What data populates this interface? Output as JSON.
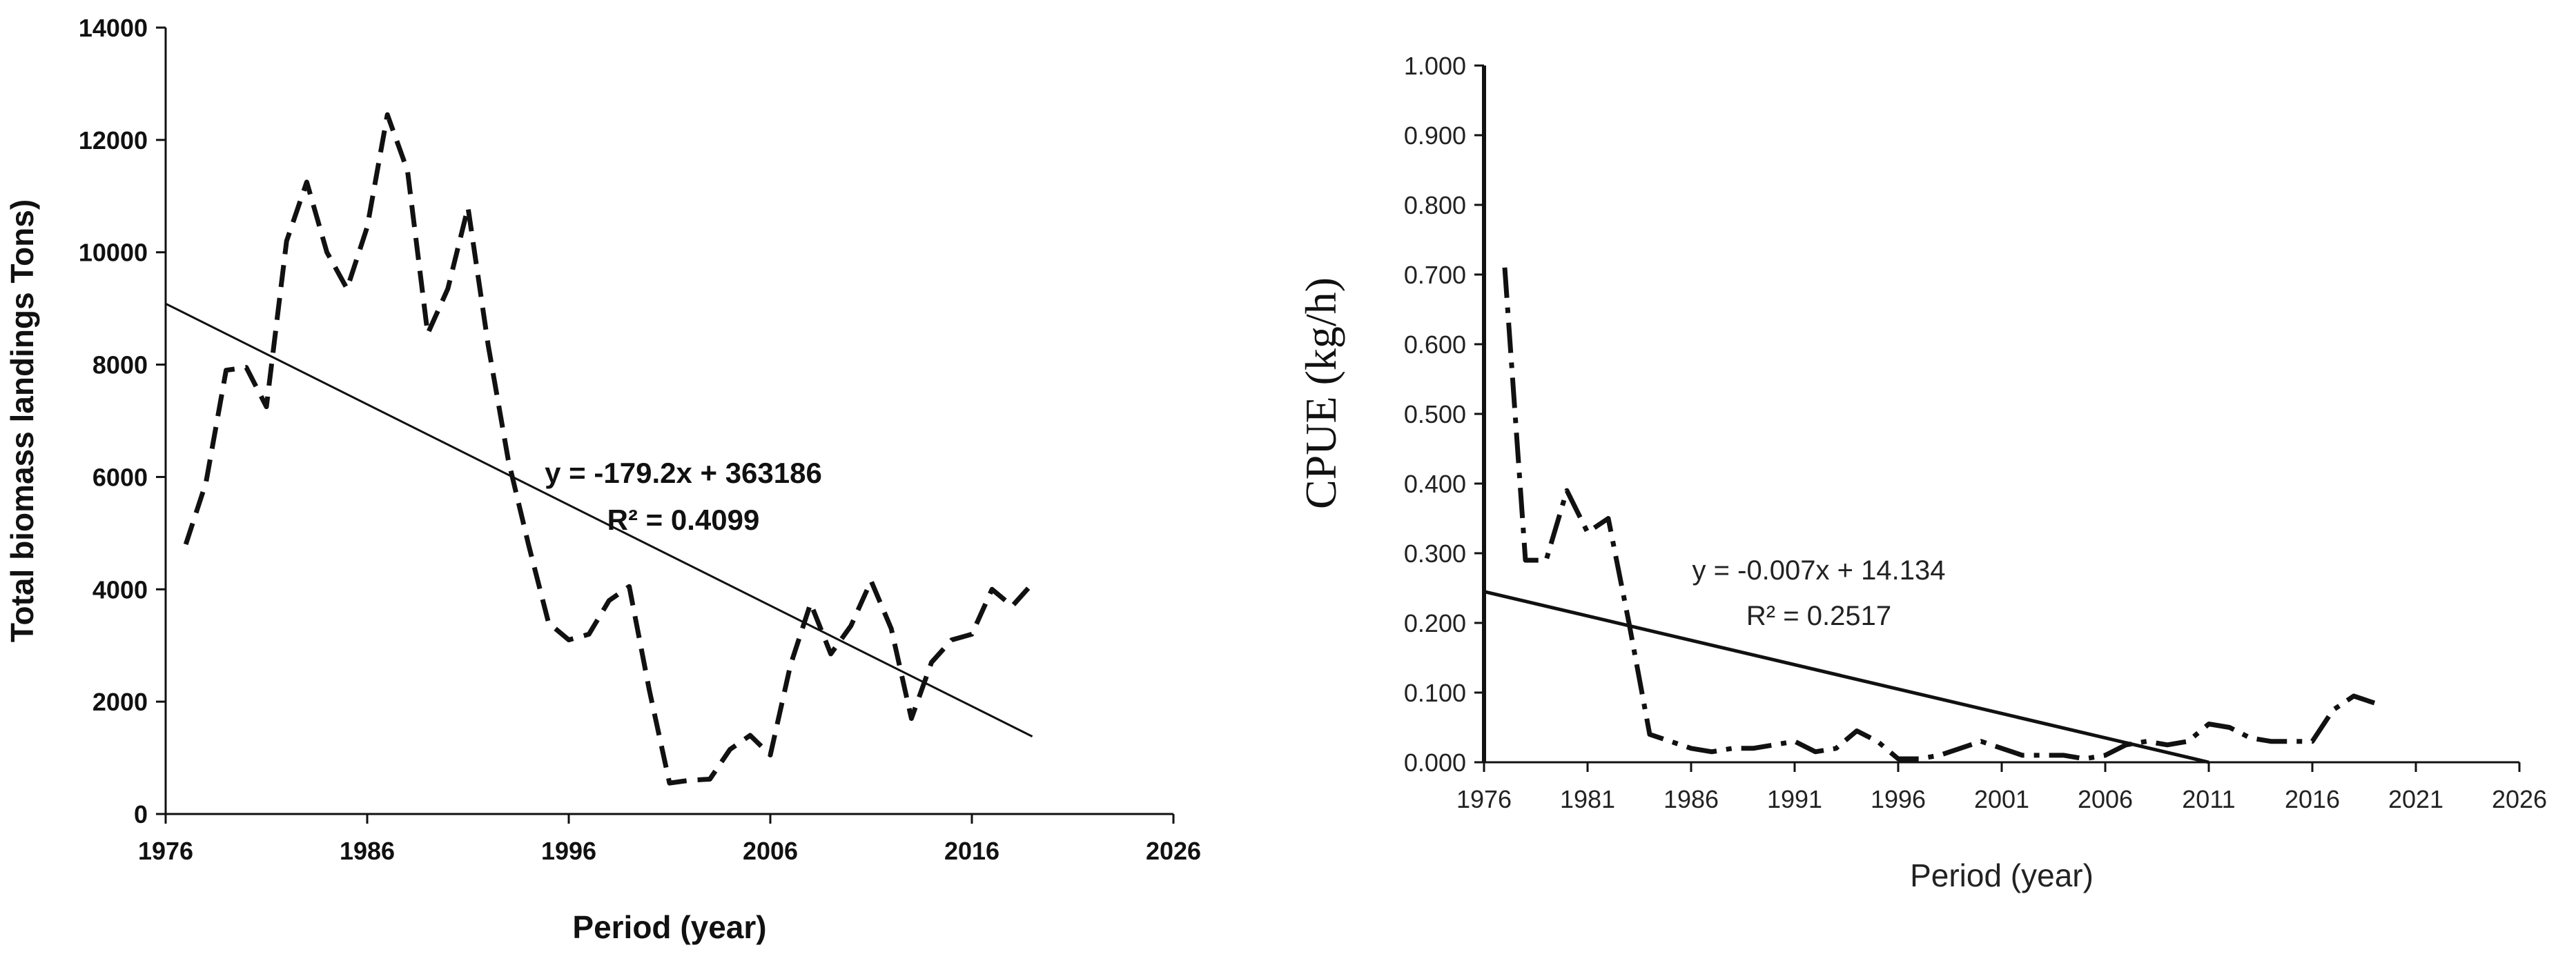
{
  "chart_data": [
    {
      "type": "line",
      "title": "",
      "xlabel": "Period (year)",
      "ylabel": "Total biomass landings Tons)",
      "xlim": [
        1976,
        2026
      ],
      "ylim": [
        0,
        14000
      ],
      "x_ticks": [
        "1976",
        "1986",
        "1996",
        "2006",
        "2016",
        "2026"
      ],
      "y_ticks": [
        "0",
        "2000",
        "4000",
        "6000",
        "8000",
        "10000",
        "12000",
        "14000"
      ],
      "series": [
        {
          "line_style": "dashed",
          "x": [
            1977,
            1978,
            1979,
            1980,
            1981,
            1982,
            1983,
            1984,
            1985,
            1986,
            1987,
            1988,
            1989,
            1990,
            1991,
            1992,
            1993,
            1994,
            1995,
            1996,
            1997,
            1998,
            1999,
            2000,
            2001,
            2002,
            2003,
            2004,
            2005,
            2006,
            2007,
            2008,
            2009,
            2010,
            2011,
            2012,
            2013,
            2014,
            2015,
            2016,
            2017,
            2018,
            2019
          ],
          "y": [
            4800,
            5900,
            7900,
            7950,
            7250,
            10200,
            11250,
            10000,
            9350,
            10450,
            12450,
            11450,
            8550,
            9350,
            10800,
            8350,
            6300,
            4800,
            3400,
            3100,
            3200,
            3800,
            4050,
            2200,
            550,
            600,
            620,
            1150,
            1400,
            1050,
            2650,
            3750,
            2850,
            3350,
            4150,
            3300,
            1700,
            2700,
            3100,
            3200,
            4000,
            3700,
            4100
          ]
        }
      ],
      "trendline": {
        "x": [
          1976,
          2019
        ],
        "y": [
          9085,
          1380
        ]
      },
      "equation": "y = -179.2x + 363186",
      "r2": "R² = 0.4099",
      "grid": false,
      "legend": "none"
    },
    {
      "type": "line",
      "title": "",
      "xlabel": "Period (year)",
      "ylabel": "CPUE (kg/h)",
      "xlim": [
        1976,
        2026
      ],
      "ylim": [
        0,
        1.0
      ],
      "x_ticks": [
        "1976",
        "1981",
        "1986",
        "1991",
        "1996",
        "2001",
        "2006",
        "2011",
        "2016",
        "2021",
        "2026"
      ],
      "y_ticks": [
        "0.000",
        "0.100",
        "0.200",
        "0.300",
        "0.400",
        "0.500",
        "0.600",
        "0.700",
        "0.800",
        "0.900",
        "1.000"
      ],
      "series": [
        {
          "line_style": "dash-dot",
          "x": [
            1977,
            1978,
            1979,
            1980,
            1981,
            1982,
            1983,
            1984,
            1985,
            1986,
            1987,
            1988,
            1989,
            1990,
            1991,
            1992,
            1993,
            1994,
            1995,
            1996,
            1997,
            1998,
            1999,
            2000,
            2001,
            2002,
            2003,
            2004,
            2005,
            2006,
            2007,
            2008,
            2009,
            2010,
            2011,
            2012,
            2013,
            2014,
            2015,
            2016,
            2017,
            2018,
            2019
          ],
          "y": [
            0.71,
            0.29,
            0.29,
            0.39,
            0.33,
            0.35,
            0.2,
            0.04,
            0.03,
            0.02,
            0.015,
            0.02,
            0.02,
            0.025,
            0.03,
            0.015,
            0.02,
            0.045,
            0.03,
            0.005,
            0.005,
            0.01,
            0.02,
            0.03,
            0.02,
            0.01,
            0.01,
            0.01,
            0.005,
            0.01,
            0.025,
            0.03,
            0.025,
            0.03,
            0.055,
            0.05,
            0.035,
            0.03,
            0.03,
            0.03,
            0.075,
            0.095,
            0.085
          ]
        }
      ],
      "trendline": {
        "x": [
          1976,
          2011
        ],
        "y": [
          0.245,
          0.0
        ]
      },
      "equation": "y = -0.007x + 14.134",
      "r2": "R² = 0.2517",
      "grid": false,
      "legend": "none"
    }
  ]
}
